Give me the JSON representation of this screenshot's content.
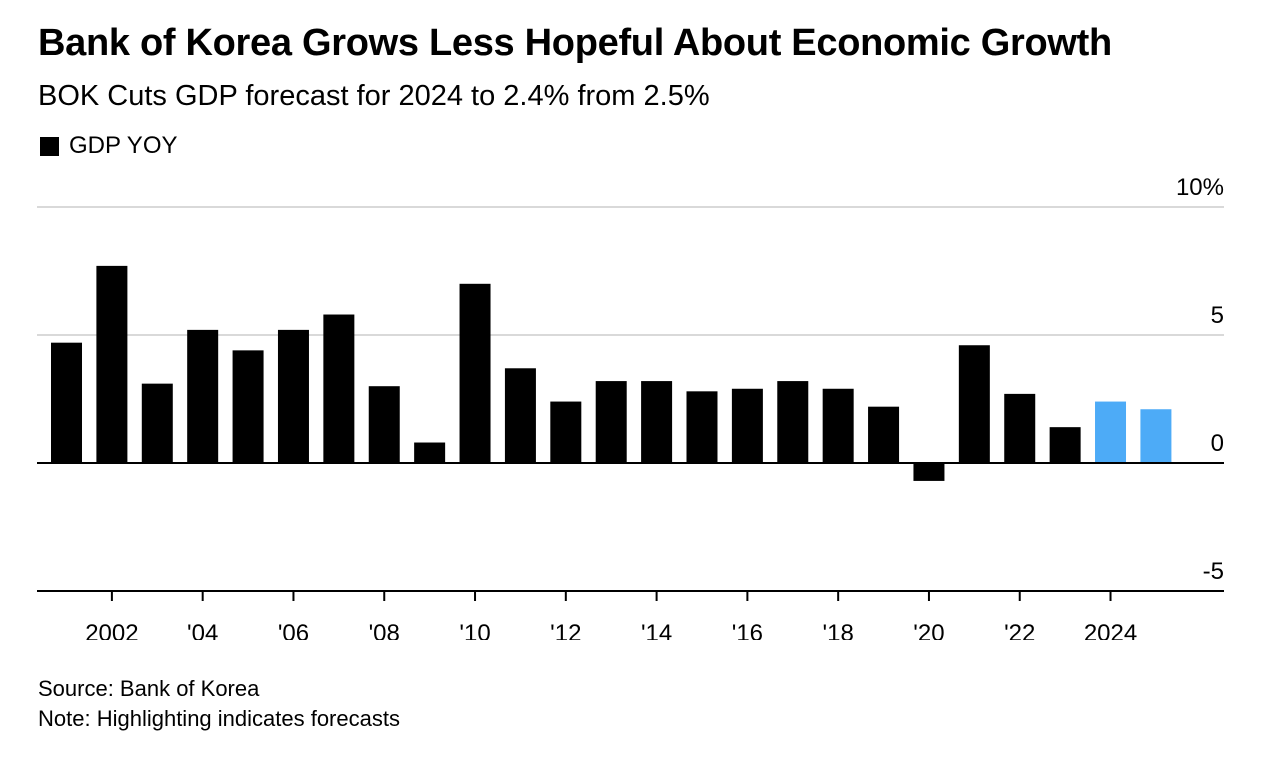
{
  "header": {
    "title": "Bank of Korea Grows Less Hopeful About Economic Growth",
    "subtitle": "BOK Cuts GDP forecast for 2024 to 2.4% from 2.5%"
  },
  "footer": {
    "source": "Source: Bank of Korea",
    "note": "Note: Highlighting indicates forecasts"
  },
  "colors": {
    "actual": "#000000",
    "forecast": "#4dabf7",
    "grid": "#d9d9d9",
    "baseline": "#000000"
  },
  "chart_data": {
    "type": "bar",
    "title": "Bank of Korea Grows Less Hopeful About Economic Growth",
    "subtitle": "BOK Cuts GDP forecast for 2024 to 2.4% from 2.5%",
    "series": [
      {
        "name": "GDP YOY",
        "x": [
          2001,
          2002,
          2003,
          2004,
          2005,
          2006,
          2007,
          2008,
          2009,
          2010,
          2011,
          2012,
          2013,
          2014,
          2015,
          2016,
          2017,
          2018,
          2019,
          2020,
          2021,
          2022,
          2023,
          2024,
          2025
        ],
        "values": [
          4.7,
          7.7,
          3.1,
          5.2,
          4.4,
          5.2,
          5.8,
          3.0,
          0.8,
          7.0,
          3.7,
          2.4,
          3.2,
          3.2,
          2.8,
          2.9,
          3.2,
          2.9,
          2.2,
          -0.7,
          4.6,
          2.7,
          1.4,
          2.4,
          2.1
        ],
        "forecast": [
          false,
          false,
          false,
          false,
          false,
          false,
          false,
          false,
          false,
          false,
          false,
          false,
          false,
          false,
          false,
          false,
          false,
          false,
          false,
          false,
          false,
          false,
          false,
          true,
          true
        ]
      }
    ],
    "x_ticks": [
      {
        "value": 2002,
        "label": "2002"
      },
      {
        "value": 2004,
        "label": "'04"
      },
      {
        "value": 2006,
        "label": "'06"
      },
      {
        "value": 2008,
        "label": "'08"
      },
      {
        "value": 2010,
        "label": "'10"
      },
      {
        "value": 2012,
        "label": "'12"
      },
      {
        "value": 2014,
        "label": "'14"
      },
      {
        "value": 2016,
        "label": "'16"
      },
      {
        "value": 2018,
        "label": "'18"
      },
      {
        "value": 2020,
        "label": "'20"
      },
      {
        "value": 2022,
        "label": "'22"
      },
      {
        "value": 2024,
        "label": "2024"
      }
    ],
    "y_ticks": [
      {
        "value": 10,
        "label": "10%"
      },
      {
        "value": 5,
        "label": "5"
      },
      {
        "value": 0,
        "label": "0"
      },
      {
        "value": -5,
        "label": "-5"
      }
    ],
    "xlim": [
      2000.35,
      2026.5
    ],
    "ylim": [
      -5,
      10
    ],
    "ylabel_position": "right",
    "legend_position": "top-left",
    "grid": true
  }
}
